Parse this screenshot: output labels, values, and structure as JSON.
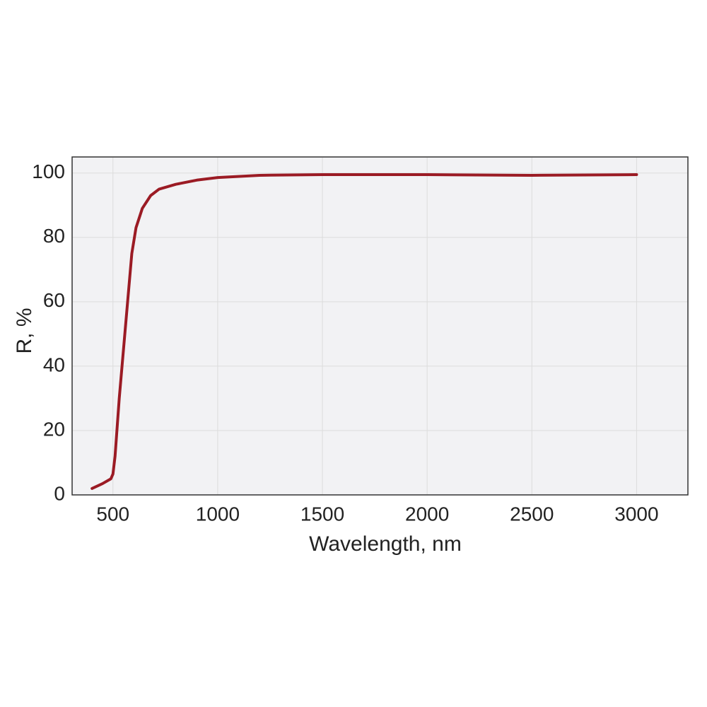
{
  "chart_data": {
    "type": "line",
    "x_label": "Wavelength, nm",
    "y_label": "R, %",
    "xlim": [
      305,
      3245
    ],
    "ylim": [
      0,
      105
    ],
    "xticks": [
      500,
      1000,
      1500,
      2000,
      2500,
      3000
    ],
    "yticks": [
      0,
      20,
      40,
      60,
      80,
      100
    ],
    "grid": true,
    "x": [
      400,
      450,
      490,
      500,
      510,
      530,
      550,
      570,
      590,
      610,
      640,
      680,
      720,
      800,
      900,
      1000,
      1200,
      1500,
      2000,
      2500,
      3000
    ],
    "series": [
      {
        "color": "#9b1b24",
        "values": [
          2,
          3.5,
          5,
          6.5,
          12,
          30,
          45,
          60,
          75,
          83,
          89,
          93,
          95,
          96.5,
          97.8,
          98.6,
          99.3,
          99.5,
          99.5,
          99.3,
          99.5
        ]
      }
    ]
  }
}
